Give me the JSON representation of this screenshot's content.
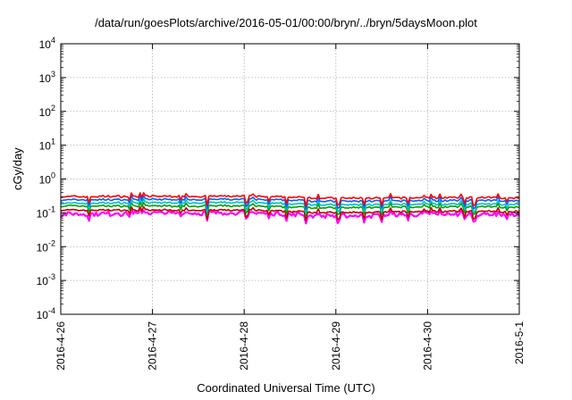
{
  "chart_data": {
    "type": "line",
    "title": "/data/run/goesPlots/archive/2016-05-01/00:00/bryn/../bryn/5daysMoon.plot",
    "xlabel": "Coordinated Universal Time (UTC)",
    "ylabel": "cGy/day",
    "y_scale": "log",
    "ylim": [
      0.0001,
      10000
    ],
    "xlim": [
      "2016-04-26",
      "2016-05-01"
    ],
    "y_ticks": [
      {
        "value": 0.0001,
        "base": "10",
        "exp": "-4"
      },
      {
        "value": 0.001,
        "base": "10",
        "exp": "-3"
      },
      {
        "value": 0.01,
        "base": "10",
        "exp": "-2"
      },
      {
        "value": 0.1,
        "base": "10",
        "exp": "-1"
      },
      {
        "value": 1,
        "base": "10",
        "exp": "0"
      },
      {
        "value": 10,
        "base": "10",
        "exp": "1"
      },
      {
        "value": 100,
        "base": "10",
        "exp": "2"
      },
      {
        "value": 1000,
        "base": "10",
        "exp": "3"
      },
      {
        "value": 10000,
        "base": "10",
        "exp": "4"
      }
    ],
    "x_ticks": [
      "2016-4-26",
      "2016-4-27",
      "2016-4-28",
      "2016-4-29",
      "2016-4-30",
      "2016-5-1"
    ],
    "grid": true,
    "series": [
      {
        "color": "#ff00ff",
        "values": [
          0.09,
          0.1,
          0.1,
          0.08,
          0.09
        ]
      },
      {
        "color": "#c00000",
        "values": [
          0.12,
          0.12,
          0.12,
          0.1,
          0.11
        ]
      },
      {
        "color": "#00a000",
        "values": [
          0.16,
          0.16,
          0.16,
          0.14,
          0.15
        ]
      },
      {
        "color": "#00c0c0",
        "values": [
          0.19,
          0.2,
          0.2,
          0.17,
          0.18
        ]
      },
      {
        "color": "#0060ff",
        "values": [
          0.24,
          0.25,
          0.25,
          0.22,
          0.23
        ]
      },
      {
        "color": "#ff0000",
        "values": [
          0.3,
          0.31,
          0.31,
          0.27,
          0.28
        ]
      }
    ]
  }
}
